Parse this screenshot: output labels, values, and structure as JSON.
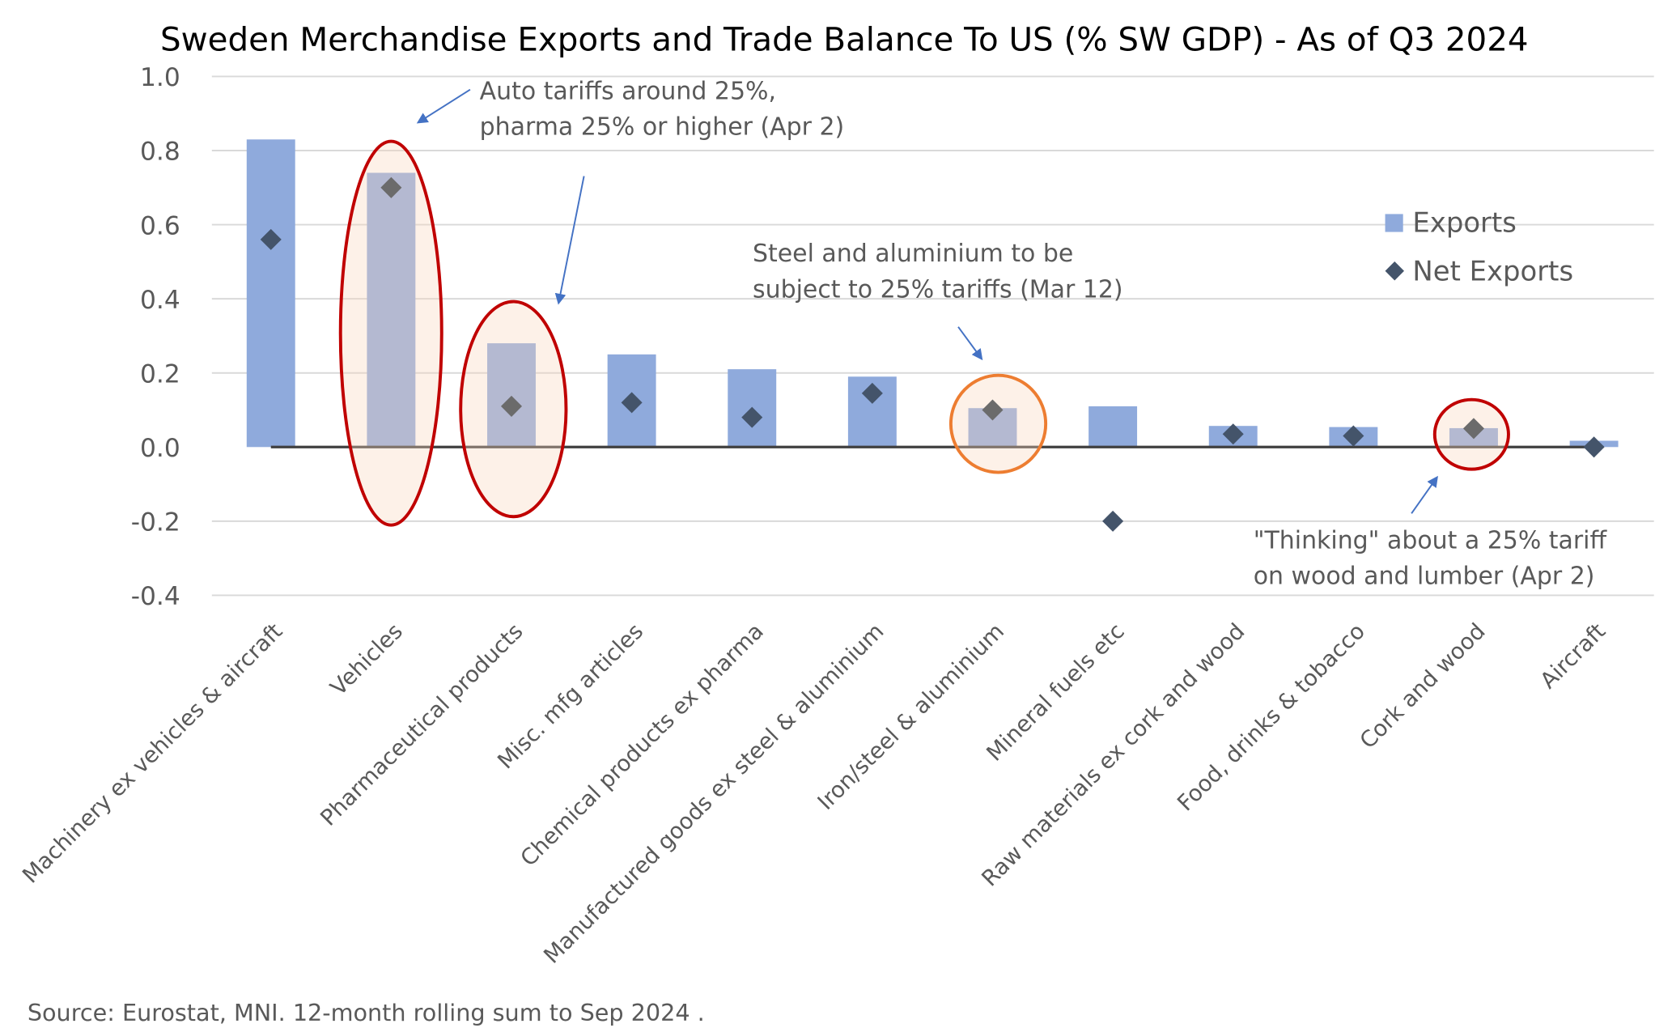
{
  "chart_data": {
    "type": "bar",
    "title": "Sweden Merchandise Exports and Trade Balance To US (% SW GDP) - As of Q3 2024",
    "source": "Source: Eurostat, MNI. 12-month rolling sum to Sep 2024 .",
    "ylim": [
      -0.4,
      1.0
    ],
    "yticks": [
      "1.0",
      "0.8",
      "0.6",
      "0.4",
      "0.2",
      "0.0",
      "-0.2",
      "-0.4"
    ],
    "ytick_values": [
      1.0,
      0.8,
      0.6,
      0.4,
      0.2,
      0.0,
      -0.2,
      -0.4
    ],
    "grid": true,
    "legend_placement": "top-right",
    "categories": [
      "Machinery ex vehicles & aircraft",
      "Vehicles",
      "Pharmaceutical products",
      "Misc. mfg articles",
      "Chemical products ex pharma",
      "Manufactured goods ex steel & aluminium",
      "Iron/steel & aluminium",
      "Mineral fuels etc",
      "Raw materials ex cork and wood",
      "Food, drinks & tobacco",
      "Cork and wood",
      "Aircraft"
    ],
    "series": [
      {
        "name": "Exports",
        "type": "bar",
        "color": "#8faadc",
        "values": [
          0.83,
          0.74,
          0.28,
          0.25,
          0.21,
          0.19,
          0.105,
          0.11,
          0.057,
          0.054,
          0.051,
          0.017
        ]
      },
      {
        "name": "Net Exports",
        "type": "scatter",
        "marker": "diamond",
        "color": "#44546a",
        "values": [
          0.56,
          0.7,
          0.11,
          0.12,
          0.08,
          0.145,
          0.1,
          -0.2,
          0.035,
          0.03,
          0.05,
          0.0
        ]
      }
    ],
    "annotations": [
      {
        "lines": [
          "Auto tariffs around 25%,",
          "pharma 25% or higher (Apr 2)"
        ],
        "targets": [
          "Vehicles",
          "Pharmaceutical products"
        ],
        "highlight_color": "#c00000"
      },
      {
        "lines": [
          "Steel and aluminium to be",
          "subject to 25% tariffs (Mar 12)"
        ],
        "targets": [
          "Iron/steel & aluminium"
        ],
        "highlight_color": "#ed7d31"
      },
      {
        "lines": [
          "\"Thinking\" about a 25% tariff",
          "on wood and lumber (Apr 2)"
        ],
        "targets": [
          "Cork and wood"
        ],
        "highlight_color": "#c00000"
      }
    ]
  }
}
